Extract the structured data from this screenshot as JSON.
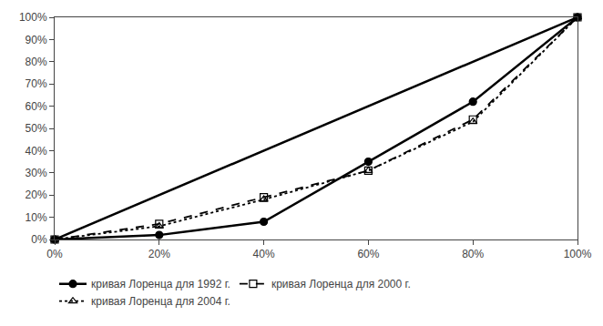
{
  "chart_data": {
    "type": "line",
    "series": [
      {
        "x": [
          0,
          1
        ],
        "values": [
          0,
          1
        ],
        "color": "#000000",
        "line_style": "solid"
      },
      {
        "name": "кривая Лоренца для 1992 г.",
        "x": [
          0,
          0.2,
          0.4,
          0.6,
          0.8,
          1.0
        ],
        "values": [
          0,
          0.02,
          0.08,
          0.35,
          0.62,
          1.0
        ],
        "color": "#000000",
        "line_style": "solid",
        "marker": "circle"
      },
      {
        "name": "кривая Лоренца для 2000 г.",
        "x": [
          0,
          0.2,
          0.4,
          0.6,
          0.8,
          1.0
        ],
        "values": [
          0,
          0.07,
          0.19,
          0.31,
          0.54,
          1.0
        ],
        "color": "#000000",
        "line_style": "dash",
        "marker": "square-open"
      },
      {
        "name": "кривая Лоренца для 2004 г.",
        "x": [
          0,
          0.2,
          0.4,
          0.6,
          0.8,
          1.0
        ],
        "values": [
          0,
          0.06,
          0.18,
          0.31,
          0.53,
          1.0
        ],
        "color": "#000000",
        "line_style": "dot",
        "marker": "triangle-up-open"
      }
    ],
    "xlim": [
      0,
      1.0
    ],
    "ylim": [
      0,
      1.0
    ],
    "xticks": [
      {
        "value": 0,
        "label": "0%"
      },
      {
        "value": 0.2,
        "label": "20%"
      },
      {
        "value": 0.4,
        "label": "40%"
      },
      {
        "value": 0.6,
        "label": "60%"
      },
      {
        "value": 0.8,
        "label": "80%"
      },
      {
        "value": 1.0,
        "label": "100%"
      }
    ],
    "yticks": [
      {
        "value": 0,
        "label": "0%"
      },
      {
        "value": 0.1,
        "label": "10%"
      },
      {
        "value": 0.2,
        "label": "20%"
      },
      {
        "value": 0.3,
        "label": "30%"
      },
      {
        "value": 0.4,
        "label": "40%"
      },
      {
        "value": 0.5,
        "label": "50%"
      },
      {
        "value": 0.6,
        "label": "60%"
      },
      {
        "value": 0.7,
        "label": "70%"
      },
      {
        "value": 0.8,
        "label": "80%"
      },
      {
        "value": 0.9,
        "label": "90%"
      },
      {
        "value": 1.0,
        "label": "100%"
      }
    ],
    "grid": false,
    "legend": "bottom"
  }
}
